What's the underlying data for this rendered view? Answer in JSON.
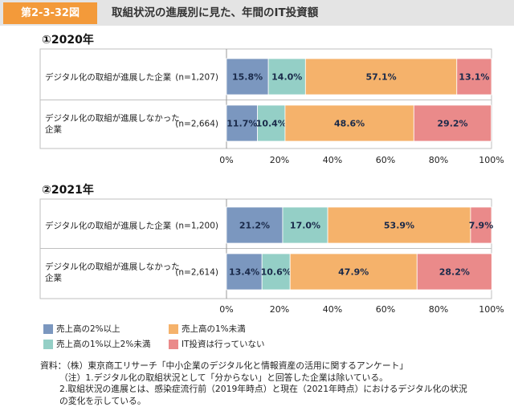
{
  "header": {
    "figure_number": "第2-3-32図",
    "title": "取組状況の進展別に見た、年間のIT投資額"
  },
  "colors": {
    "header_bg": "#e4e4e4",
    "tag_bg": "#f39a3a",
    "series": [
      "#7b97bf",
      "#94cfc6",
      "#f5b26b",
      "#ea8a8a"
    ]
  },
  "chart_data": [
    {
      "type": "bar",
      "stacked": "percent-horizontal",
      "title": "①2020年",
      "categories": [
        "デジタル化の取組が進展した企業",
        "デジタル化の取組が進展しなかった企業"
      ],
      "category_lines": [
        [
          "デジタル化の取組が進展した企業"
        ],
        [
          "デジタル化の取組が進展しなかった",
          "企業"
        ]
      ],
      "n_labels": [
        "(n=1,207)",
        "(n=2,664)"
      ],
      "series": [
        {
          "name": "売上高の2%以上",
          "values": [
            15.8,
            11.7
          ]
        },
        {
          "name": "売上高の1%以上2%未満",
          "values": [
            14.0,
            10.4
          ]
        },
        {
          "name": "売上高の1%未満",
          "values": [
            57.1,
            48.6
          ]
        },
        {
          "name": "IT投資は行っていない",
          "values": [
            13.1,
            29.2
          ]
        }
      ],
      "xlim": [
        0,
        100
      ],
      "ticks": [
        "0%",
        "20%",
        "40%",
        "60%",
        "80%",
        "100%"
      ]
    },
    {
      "type": "bar",
      "stacked": "percent-horizontal",
      "title": "②2021年",
      "categories": [
        "デジタル化の取組が進展した企業",
        "デジタル化の取組が進展しなかった企業"
      ],
      "category_lines": [
        [
          "デジタル化の取組が進展した企業"
        ],
        [
          "デジタル化の取組が進展しなかった",
          "企業"
        ]
      ],
      "n_labels": [
        "(n=1,200)",
        "(n=2,614)"
      ],
      "series": [
        {
          "name": "売上高の2%以上",
          "values": [
            21.2,
            13.4
          ]
        },
        {
          "name": "売上高の1%以上2%未満",
          "values": [
            17.0,
            10.6
          ]
        },
        {
          "name": "売上高の1%未満",
          "values": [
            53.9,
            47.9
          ]
        },
        {
          "name": "IT投資は行っていない",
          "values": [
            7.9,
            28.2
          ]
        }
      ],
      "xlim": [
        0,
        100
      ],
      "ticks": [
        "0%",
        "20%",
        "40%",
        "60%",
        "80%",
        "100%"
      ]
    }
  ],
  "legend": [
    {
      "label": "売上高の2%以上"
    },
    {
      "label": "売上高の1%未満"
    },
    {
      "label": "売上高の1%以上2%未満"
    },
    {
      "label": "IT投資は行っていない"
    }
  ],
  "notes": [
    "資料：（株）東京商工リサーチ「中小企業のデジタル化と情報資産の活用に関するアンケート」",
    "（注）1.デジタル化の取組状況として「分からない」と回答した企業は除いている。",
    "2.取組状況の進展とは、感染症流行前（2019年時点）と現在（2021年時点）におけるデジタル化の状況",
    "の変化を示している。"
  ]
}
